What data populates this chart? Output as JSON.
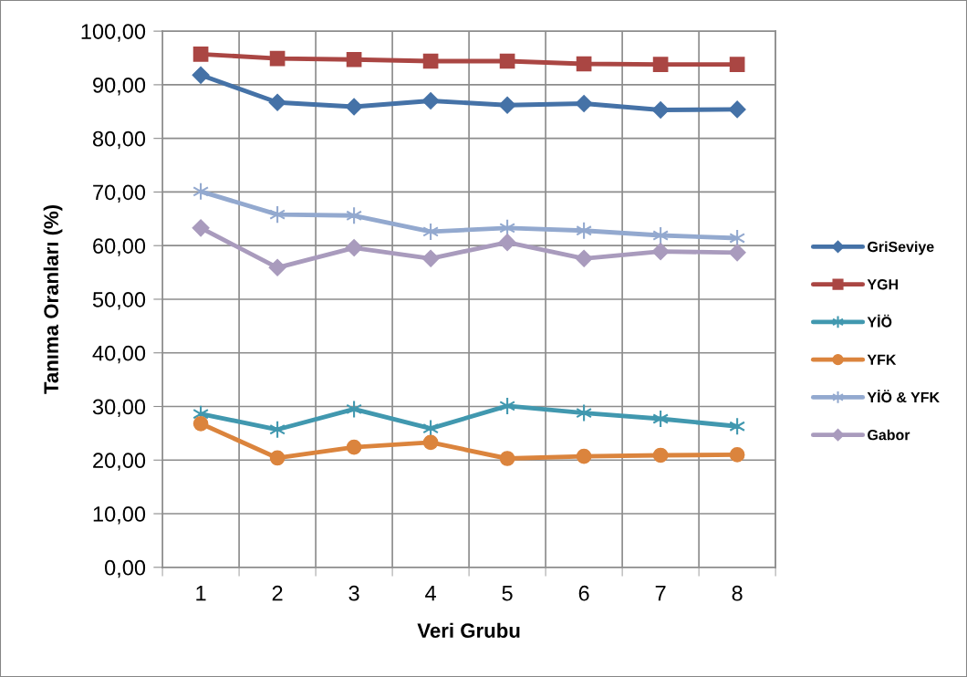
{
  "chart_data": {
    "type": "line",
    "xlabel": "Veri Grubu",
    "ylabel": "Tanıma Oranları (%)",
    "categories": [
      "1",
      "2",
      "3",
      "4",
      "5",
      "6",
      "7",
      "8"
    ],
    "ylim": [
      0,
      100
    ],
    "yticks": [
      {
        "value": 0,
        "label": "0,00"
      },
      {
        "value": 10,
        "label": "10,00"
      },
      {
        "value": 20,
        "label": "20,00"
      },
      {
        "value": 30,
        "label": "30,00"
      },
      {
        "value": 40,
        "label": "40,00"
      },
      {
        "value": 50,
        "label": "50,00"
      },
      {
        "value": 60,
        "label": "60,00"
      },
      {
        "value": 70,
        "label": "70,00"
      },
      {
        "value": 80,
        "label": "80,00"
      },
      {
        "value": 90,
        "label": "90,00"
      },
      {
        "value": 100,
        "label": "100,00"
      }
    ],
    "grid": true,
    "legend": "right",
    "line_style": "solid",
    "series": [
      {
        "name": "GriSeviye",
        "color": "#4572a7",
        "marker": "diamond",
        "values": [
          91.8,
          86.7,
          85.9,
          87.0,
          86.2,
          86.5,
          85.3,
          85.4
        ]
      },
      {
        "name": "YGH",
        "color": "#aa4643",
        "marker": "square",
        "values": [
          95.7,
          94.9,
          94.7,
          94.4,
          94.4,
          93.9,
          93.8,
          93.8
        ]
      },
      {
        "name": "YİÖ",
        "color": "#4198af",
        "marker": "cross",
        "values": [
          28.6,
          25.7,
          29.5,
          25.9,
          30.1,
          28.8,
          27.7,
          26.3
        ]
      },
      {
        "name": "YFK",
        "color": "#db843d",
        "marker": "circle",
        "values": [
          26.8,
          20.4,
          22.4,
          23.3,
          20.3,
          20.7,
          20.9,
          21.0
        ]
      },
      {
        "name": "YİÖ & YFK",
        "color": "#93a9cf",
        "marker": "cross",
        "values": [
          70.1,
          65.8,
          65.6,
          62.6,
          63.3,
          62.8,
          61.9,
          61.4
        ]
      },
      {
        "name": "Gabor",
        "color": "#a99bbd",
        "marker": "diamond",
        "values": [
          63.3,
          55.9,
          59.6,
          57.6,
          60.6,
          57.6,
          58.9,
          58.7
        ]
      }
    ]
  }
}
